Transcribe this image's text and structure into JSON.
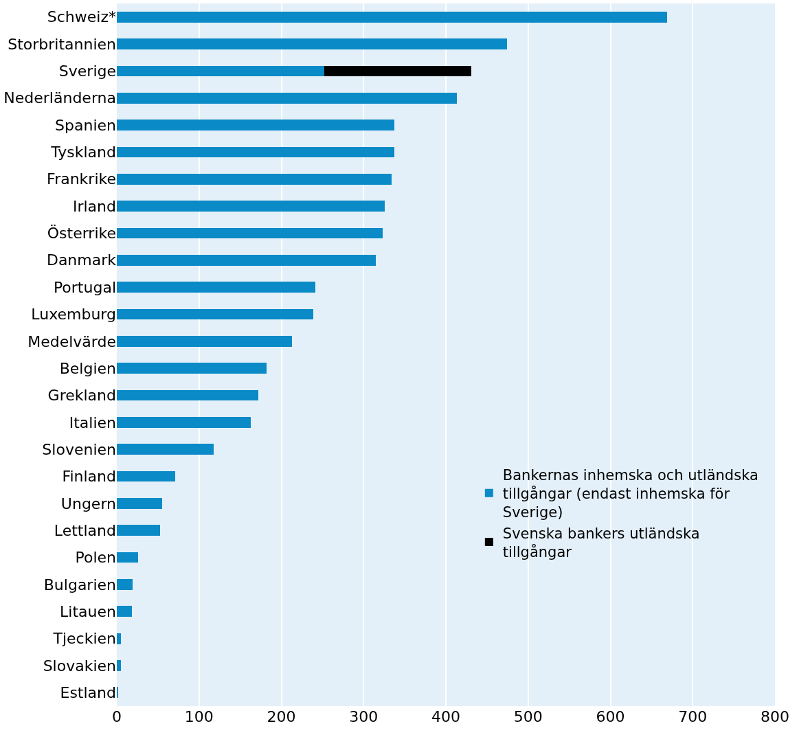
{
  "chart_data": {
    "type": "bar",
    "orientation": "horizontal",
    "stacked": true,
    "categories": [
      "Schweiz*",
      "Storbritannien",
      "Sverige",
      "Nederländerna",
      "Spanien",
      "Tyskland",
      "Frankrike",
      "Irland",
      "Österrike",
      "Danmark",
      "Portugal",
      "Luxemburg",
      "Medelvärde",
      "Belgien",
      "Grekland",
      "Italien",
      "Slovenien",
      "Finland",
      "Ungern",
      "Lettland",
      "Polen",
      "Bulgarien",
      "Litauen",
      "Tjeckien",
      "Slovakien",
      "Estland"
    ],
    "series": [
      {
        "name": "Bankernas inhemska och utländska tillgångar (endast inhemska för Sverige)",
        "color": "#0a8ac6",
        "values": [
          669,
          474,
          252,
          413,
          337,
          337,
          334,
          326,
          323,
          315,
          241,
          239,
          213,
          182,
          172,
          163,
          118,
          71,
          55,
          53,
          26,
          19,
          18,
          5,
          5,
          2
        ]
      },
      {
        "name": "Svenska bankers utländska tillgångar",
        "color": "#000000",
        "values": [
          null,
          null,
          179,
          null,
          null,
          null,
          null,
          null,
          null,
          null,
          null,
          null,
          null,
          null,
          null,
          null,
          null,
          null,
          null,
          null,
          null,
          null,
          null,
          null,
          null,
          null
        ]
      }
    ],
    "xlim": [
      0,
      800
    ],
    "xticks": [
      0,
      100,
      200,
      300,
      400,
      500,
      600,
      700,
      800
    ],
    "grid": "x",
    "legend": "bottom right"
  }
}
